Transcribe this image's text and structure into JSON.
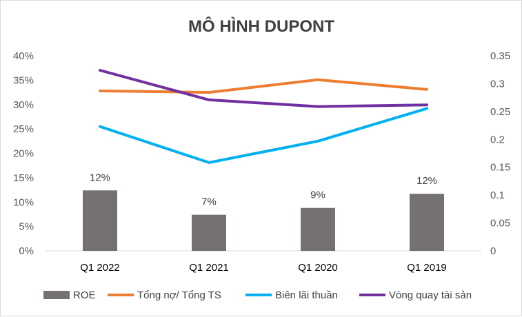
{
  "chart_data": {
    "type": "bar",
    "title": "MÔ HÌNH DUPONT",
    "categories": [
      "Q1 2022",
      "Q1 2021",
      "Q1 2020",
      "Q1 2019"
    ],
    "y_left": {
      "ticks": [
        "40%",
        "35%",
        "30%",
        "25%",
        "20%",
        "15%",
        "10%",
        "5%",
        "0%"
      ],
      "ylim": [
        0,
        0.4
      ]
    },
    "y_right": {
      "ticks": [
        "0.35",
        "0.3",
        "0.25",
        "0.2",
        "0.15",
        "0.1",
        "0.05",
        "0"
      ],
      "ylim": [
        0,
        0.35
      ]
    },
    "grid": false,
    "legend_position": "bottom",
    "series": [
      {
        "name": "ROE",
        "type": "bar",
        "axis": "left",
        "color": "#767171",
        "values": [
          0.124,
          0.074,
          0.088,
          0.117
        ],
        "labels": [
          "12%",
          "7%",
          "9%",
          "12%"
        ]
      },
      {
        "name": "Tổng nợ/ Tổng TS",
        "type": "line",
        "axis": "left",
        "color": "#ED7D31",
        "values": [
          0.328,
          0.325,
          0.351,
          0.331
        ]
      },
      {
        "name": "Biên lãi thuần",
        "type": "line",
        "axis": "left",
        "color": "#00B0F0",
        "values": [
          0.255,
          0.181,
          0.225,
          0.292
        ]
      },
      {
        "name": "Vòng quay tài sản",
        "type": "line",
        "axis": "right",
        "color": "#7030A0",
        "values": [
          0.324,
          0.271,
          0.259,
          0.262
        ]
      }
    ]
  }
}
